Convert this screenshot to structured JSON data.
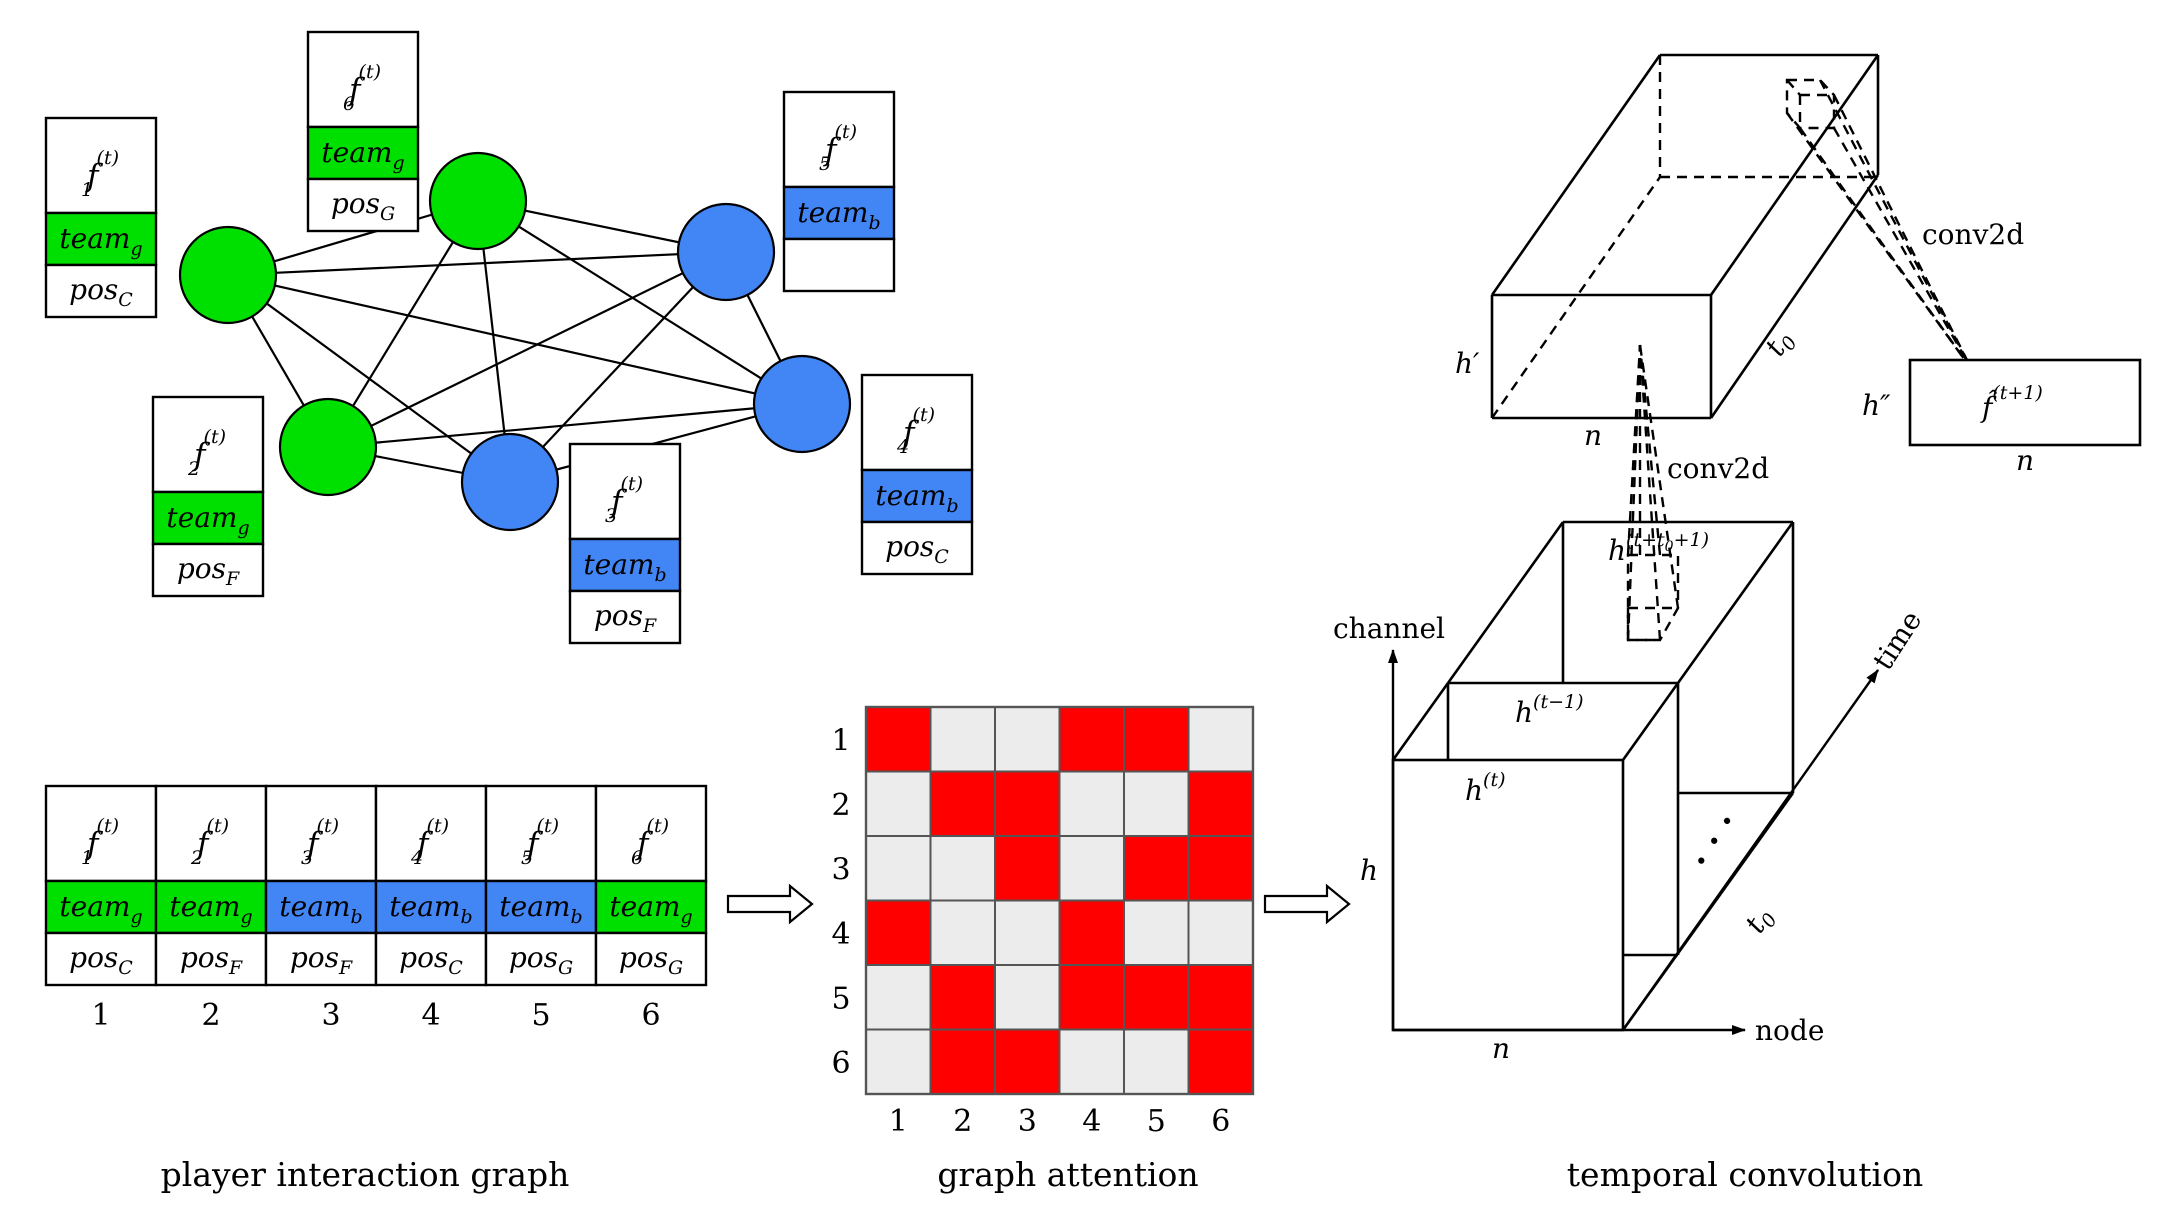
{
  "colors": {
    "green": "#00e000",
    "blue": "#4285f4",
    "red": "#ff0000",
    "gray": "#ececec",
    "line": "#000000"
  },
  "nodes": [
    {
      "id": 1,
      "team": "g"
    },
    {
      "id": 2,
      "team": "g"
    },
    {
      "id": 3,
      "team": "b"
    },
    {
      "id": 4,
      "team": "b"
    },
    {
      "id": 5,
      "team": "b"
    },
    {
      "id": 6,
      "team": "g"
    }
  ],
  "players": [
    {
      "index": "1",
      "f_base": "f",
      "f_sub": "1",
      "f_sup": "(t)",
      "team_base": "team",
      "team_sub": "g",
      "team_color": "green",
      "pos_base": "pos",
      "pos_sub": "C"
    },
    {
      "index": "2",
      "f_base": "f",
      "f_sub": "2",
      "f_sup": "(t)",
      "team_base": "team",
      "team_sub": "g",
      "team_color": "green",
      "pos_base": "pos",
      "pos_sub": "F"
    },
    {
      "index": "3",
      "f_base": "f",
      "f_sub": "3",
      "f_sup": "(t)",
      "team_base": "team",
      "team_sub": "b",
      "team_color": "blue",
      "pos_base": "pos",
      "pos_sub": "F"
    },
    {
      "index": "4",
      "f_base": "f",
      "f_sub": "4",
      "f_sup": "(t)",
      "team_base": "team",
      "team_sub": "b",
      "team_color": "blue",
      "pos_base": "pos",
      "pos_sub": "C"
    },
    {
      "index": "5",
      "f_base": "f",
      "f_sub": "5",
      "f_sup": "(t)",
      "team_base": "team",
      "team_sub": "b",
      "team_color": "blue",
      "pos_base": "",
      "pos_sub": ""
    },
    {
      "index": "6",
      "f_base": "f",
      "f_sub": "6",
      "f_sup": "(t)",
      "team_base": "team",
      "team_sub": "g",
      "team_color": "green",
      "pos_base": "pos",
      "pos_sub": "G"
    }
  ],
  "table_players": [
    {
      "index": "1",
      "f_sub": "1",
      "team_sub": "g",
      "team_color": "green",
      "pos_sub": "C"
    },
    {
      "index": "2",
      "f_sub": "2",
      "team_sub": "g",
      "team_color": "green",
      "pos_sub": "F"
    },
    {
      "index": "3",
      "f_sub": "3",
      "team_sub": "b",
      "team_color": "blue",
      "pos_sub": "F"
    },
    {
      "index": "4",
      "f_sub": "4",
      "team_sub": "b",
      "team_color": "blue",
      "pos_sub": "C"
    },
    {
      "index": "5",
      "f_sub": "5",
      "team_sub": "b",
      "team_color": "blue",
      "pos_sub": "G"
    },
    {
      "index": "6",
      "f_sub": "6",
      "team_sub": "g",
      "team_color": "green",
      "pos_sub": "G"
    }
  ],
  "attention": {
    "row_labels": [
      "1",
      "2",
      "3",
      "4",
      "5",
      "6"
    ],
    "col_labels": [
      "1",
      "2",
      "3",
      "4",
      "5",
      "6"
    ],
    "matrix": [
      [
        1,
        0,
        0,
        1,
        1,
        0
      ],
      [
        0,
        1,
        1,
        0,
        0,
        1
      ],
      [
        0,
        0,
        1,
        0,
        1,
        1
      ],
      [
        1,
        0,
        0,
        1,
        0,
        0
      ],
      [
        0,
        1,
        0,
        1,
        1,
        1
      ],
      [
        0,
        1,
        1,
        0,
        0,
        1
      ]
    ]
  },
  "temporal": {
    "h_prime": "h′",
    "h_double_prime": "h″",
    "n": "n",
    "t0": "t",
    "t0_sub": "0",
    "conv_top": "conv2d",
    "conv_mid": "conv2d",
    "f_hat": "f̂",
    "f_hat_sup": "(t+1)",
    "h_stack_base": "h",
    "h_stack_sup": "(t+t",
    "h_stack_sup_sub": "0",
    "h_stack_sup_end": "+1)",
    "h_prev_base": "h",
    "h_prev_sup": "(t−1)",
    "h_cur_base": "h",
    "h_cur_sup": "(t)",
    "h_axis": "h",
    "channel": "channel",
    "time": "time",
    "node": "node",
    "dots": "· · ·"
  },
  "captions": {
    "left": "player interaction graph",
    "middle": "graph attention",
    "right": "temporal convolution"
  }
}
